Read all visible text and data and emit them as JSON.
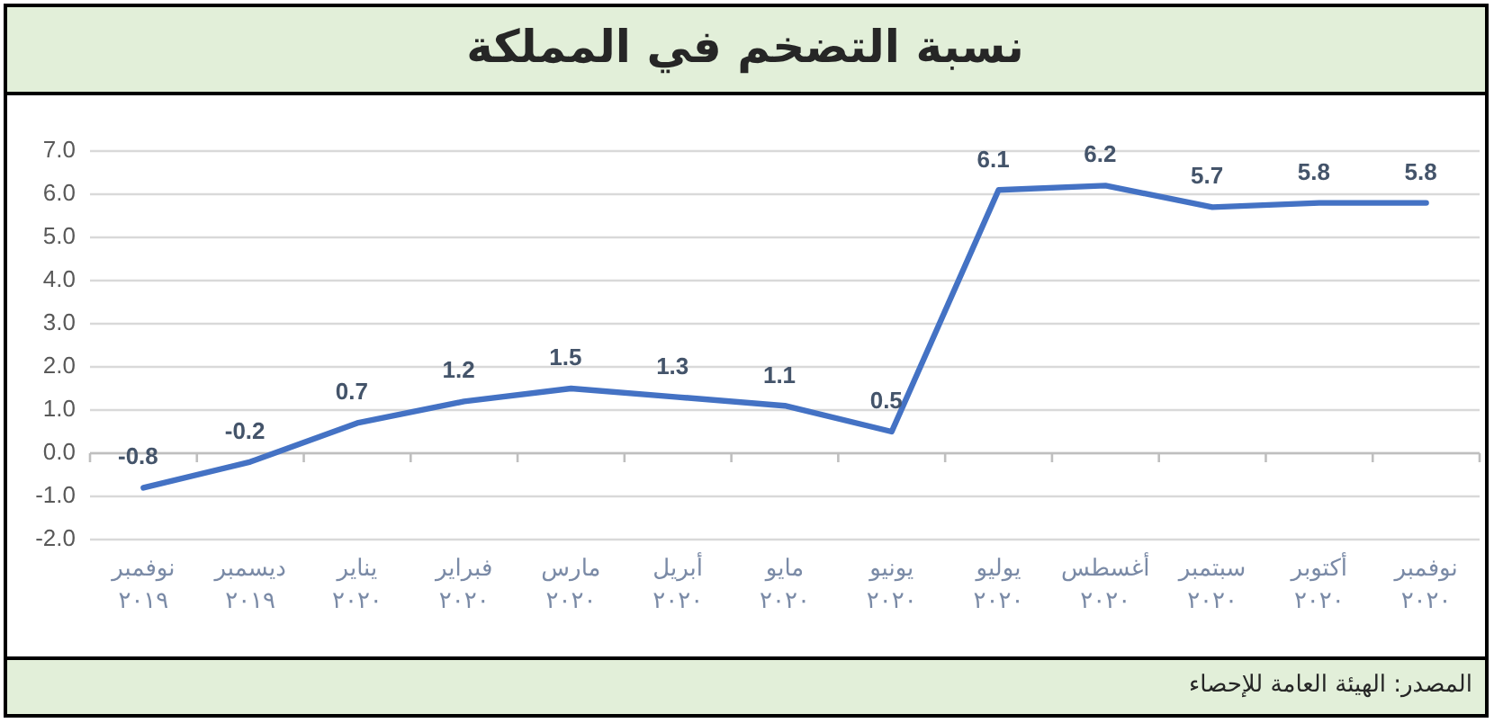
{
  "chart_data": {
    "type": "line",
    "title": "نسبة التضخم في المملكة",
    "categories": [
      "نوفمبر ٢٠١٩",
      "ديسمبر ٢٠١٩",
      "يناير ٢٠٢٠",
      "فبراير ٢٠٢٠",
      "مارس ٢٠٢٠",
      "أبريل ٢٠٢٠",
      "مايو ٢٠٢٠",
      "يونيو ٢٠٢٠",
      "يوليو ٢٠٢٠",
      "أغسطس ٢٠٢٠",
      "سبتمبر ٢٠٢٠",
      "أكتوبر ٢٠٢٠",
      "نوفمبر ٢٠٢٠"
    ],
    "values": [
      -0.8,
      -0.2,
      0.7,
      1.2,
      1.5,
      1.3,
      1.1,
      0.5,
      6.1,
      6.2,
      5.7,
      5.8,
      5.8
    ],
    "color": "#4472c4",
    "ylim": [
      -2,
      7
    ],
    "yticks": [
      {
        "value": -2,
        "label": "-2.0"
      },
      {
        "value": -1,
        "label": "-1.0"
      },
      {
        "value": 0,
        "label": "0.0"
      },
      {
        "value": 1,
        "label": "1.0"
      },
      {
        "value": 2,
        "label": "2.0"
      },
      {
        "value": 3,
        "label": "3.0"
      },
      {
        "value": 4,
        "label": "4.0"
      },
      {
        "value": 5,
        "label": "5.0"
      },
      {
        "value": 6,
        "label": "6.0"
      },
      {
        "value": 7,
        "label": "7.0"
      }
    ],
    "grid": "y",
    "data_labels": true,
    "annotations": [
      "المصدر: الهيئة العامة للإحصاء"
    ]
  }
}
